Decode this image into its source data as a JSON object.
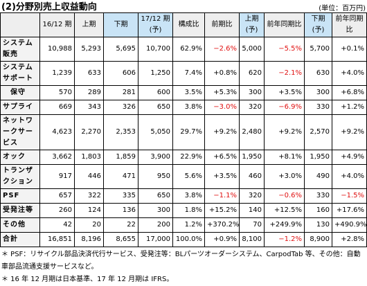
{
  "header": {
    "title": "(2)分野別売上収益動向",
    "unit": "(単位：百万円)"
  },
  "table": {
    "columns": [
      "",
      "16/12 期",
      "上期",
      "下期",
      "17/12 期(予)",
      "構成比",
      "前期比",
      "上期 (予)",
      "前年同期比",
      "下期 (予)",
      "前年同期比"
    ],
    "rows": [
      [
        "システム販売",
        "10,988",
        "5,293",
        "5,695",
        "10,700",
        "62.9%",
        "−2.6%",
        "5,000",
        "−5.5%",
        "5,700",
        "+0.1%"
      ],
      [
        "システムサポート",
        "1,239",
        "633",
        "606",
        "1,250",
        "7.4%",
        "+0.8%",
        "620",
        "−2.1%",
        "630",
        "+4.0%"
      ],
      [
        "保守",
        "570",
        "289",
        "281",
        "600",
        "3.5%",
        "+5.3%",
        "300",
        "+3.5%",
        "300",
        "+6.8%"
      ],
      [
        "サプライ",
        "669",
        "343",
        "326",
        "650",
        "3.8%",
        "−3.0%",
        "320",
        "−6.9%",
        "330",
        "+1.2%"
      ],
      [
        "ネットワークサービス",
        "4,623",
        "2,270",
        "2,353",
        "5,050",
        "29.7%",
        "+9.2%",
        "2,480",
        "+9.2%",
        "2,570",
        "+9.2%"
      ],
      [
        "オック",
        "3,662",
        "1,803",
        "1,859",
        "3,900",
        "22.9%",
        "+6.5%",
        "1,950",
        "+8.1%",
        "1,950",
        "+4.9%"
      ],
      [
        "トランザクション",
        "917",
        "446",
        "471",
        "950",
        "5.6%",
        "+3.5%",
        "460",
        "+3.0%",
        "490",
        "+4.0%"
      ],
      [
        "PSF",
        "657",
        "322",
        "335",
        "650",
        "3.8%",
        "−1.1%",
        "320",
        "−0.6%",
        "330",
        "−1.5%"
      ],
      [
        "受発注等",
        "260",
        "124",
        "136",
        "300",
        "1.8%",
        "+15.2%",
        "140",
        "+12.5%",
        "160",
        "+17.6%"
      ],
      [
        "その他",
        "42",
        "20",
        "22",
        "200",
        "1.2%",
        "+370.2%",
        "70",
        "+249.9%",
        "130",
        "+490.9%"
      ],
      [
        "合計",
        "16,851",
        "8,196",
        "8,655",
        "17,000",
        "100.0%",
        "+0.9%",
        "8,100",
        "−1.2%",
        "8,900",
        "+2.8%"
      ]
    ]
  },
  "notes": [
    "＊ PSF：リサイクル部品決済代行サービス、受発注等：BLパーツオーダーシステム、CarpodTab 等、その他：自動車部品流通支援サービスなど。",
    "＊ 16 年 12 月期は日本基準、17 年 12 月期は IFRS。"
  ]
}
